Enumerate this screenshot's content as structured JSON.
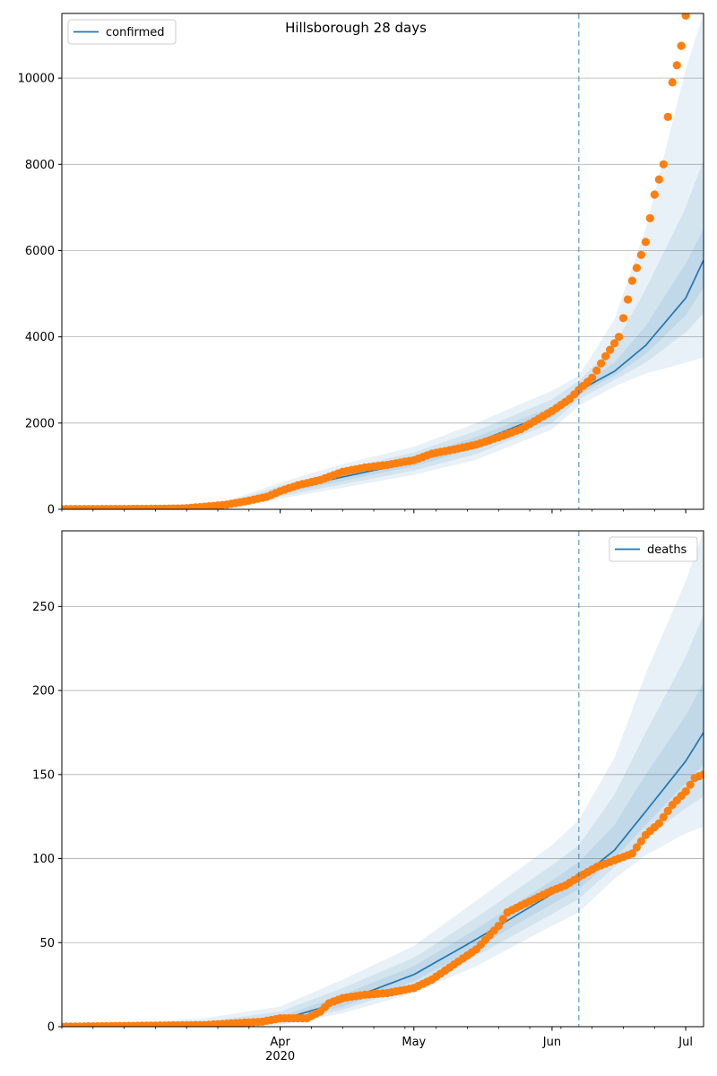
{
  "chart_data": [
    {
      "type": "line",
      "title": "Hillsborough 28 days",
      "xlabel": "",
      "ylabel": "",
      "x_axis": "date",
      "xlim": [
        "2020-02-12",
        "2020-07-05"
      ],
      "ylim": [
        0,
        11500
      ],
      "yticks": [
        0,
        2000,
        4000,
        6000,
        8000,
        10000
      ],
      "xtick_labels": [
        {
          "date": "2020-04-01",
          "label": "Apr",
          "sublabel": "2020"
        },
        {
          "date": "2020-05-01",
          "label": "May",
          "sublabel": ""
        },
        {
          "date": "2020-06-01",
          "label": "Jun",
          "sublabel": ""
        },
        {
          "date": "2020-07-01",
          "label": "Jul",
          "sublabel": ""
        }
      ],
      "grid": "horizontal",
      "legend": {
        "placement": "top-left",
        "entries": [
          "confirmed"
        ]
      },
      "vline_date": "2020-06-07",
      "colors": {
        "model": "#1f77b4",
        "observed": "#ff7f0e",
        "vline": "#1f77b4"
      },
      "model_series": {
        "name": "confirmed",
        "x": [
          "2020-02-12",
          "2020-03-01",
          "2020-03-15",
          "2020-03-22",
          "2020-04-01",
          "2020-04-15",
          "2020-05-01",
          "2020-05-15",
          "2020-06-01",
          "2020-06-07",
          "2020-06-15",
          "2020-06-22",
          "2020-07-01",
          "2020-07-05"
        ],
        "median": [
          0,
          5,
          30,
          150,
          420,
          750,
          1100,
          1550,
          2250,
          2750,
          3200,
          3800,
          4900,
          5780
        ],
        "bands": [
          {
            "lo": [
              0,
              0,
              10,
              80,
              250,
              500,
              800,
              1150,
              1850,
              2400,
              2850,
              3150,
              3400,
              3520
            ],
            "hi": [
              0,
              20,
              80,
              260,
              620,
              1050,
              1450,
              2000,
              2750,
              3100,
              4400,
              6500,
              10200,
              11500
            ]
          },
          {
            "lo": [
              0,
              2,
              15,
              100,
              300,
              580,
              900,
              1280,
              2000,
              2550,
              3000,
              3400,
              4100,
              4550
            ],
            "hi": [
              0,
              12,
              55,
              210,
              540,
              930,
              1320,
              1820,
              2550,
              2980,
              3800,
              5100,
              7000,
              8100
            ]
          },
          {
            "lo": [
              0,
              4,
              22,
              125,
              360,
              660,
              1000,
              1420,
              2130,
              2660,
              3100,
              3600,
              4500,
              5150
            ],
            "hi": [
              0,
              8,
              40,
              180,
              480,
              840,
              1210,
              1680,
              2380,
              2850,
              3400,
              4250,
              5700,
              6500
            ]
          }
        ]
      },
      "observed_series": {
        "name": "",
        "x": [
          "2020-02-12",
          "2020-03-01",
          "2020-03-10",
          "2020-03-15",
          "2020-03-20",
          "2020-03-25",
          "2020-03-29",
          "2020-04-01",
          "2020-04-05",
          "2020-04-10",
          "2020-04-15",
          "2020-04-20",
          "2020-04-25",
          "2020-05-01",
          "2020-05-05",
          "2020-05-10",
          "2020-05-15",
          "2020-05-20",
          "2020-05-25",
          "2020-06-01",
          "2020-06-05",
          "2020-06-07",
          "2020-06-10",
          "2020-06-13",
          "2020-06-16",
          "2020-06-19",
          "2020-06-22",
          "2020-06-24",
          "2020-06-26",
          "2020-06-27",
          "2020-06-28",
          "2020-06-29",
          "2020-06-30",
          "2020-07-01"
        ],
        "values": [
          5,
          10,
          20,
          60,
          110,
          200,
          290,
          420,
          560,
          680,
          870,
          970,
          1030,
          1140,
          1290,
          1390,
          1500,
          1670,
          1860,
          2280,
          2560,
          2770,
          3050,
          3550,
          4000,
          5300,
          6200,
          7300,
          8000,
          9100,
          9900,
          10300,
          10750,
          11450
        ]
      }
    },
    {
      "type": "line",
      "title": "",
      "xlabel": "",
      "ylabel": "",
      "x_axis": "date",
      "xlim": [
        "2020-02-12",
        "2020-07-05"
      ],
      "ylim": [
        0,
        295
      ],
      "yticks": [
        0,
        50,
        100,
        150,
        200,
        250
      ],
      "xtick_labels": [
        {
          "date": "2020-04-01",
          "label": "Apr",
          "sublabel": "2020"
        },
        {
          "date": "2020-05-01",
          "label": "May",
          "sublabel": ""
        },
        {
          "date": "2020-06-01",
          "label": "Jun",
          "sublabel": ""
        },
        {
          "date": "2020-07-01",
          "label": "Jul",
          "sublabel": ""
        }
      ],
      "grid": "horizontal",
      "legend": {
        "placement": "top-right",
        "entries": [
          "deaths"
        ]
      },
      "vline_date": "2020-06-07",
      "colors": {
        "model": "#1f77b4",
        "observed": "#ff7f0e",
        "vline": "#1f77b4"
      },
      "model_series": {
        "name": "deaths",
        "x": [
          "2020-02-12",
          "2020-03-15",
          "2020-04-01",
          "2020-04-15",
          "2020-05-01",
          "2020-05-15",
          "2020-06-01",
          "2020-06-07",
          "2020-06-15",
          "2020-06-22",
          "2020-07-01",
          "2020-07-05"
        ],
        "median": [
          0,
          1,
          4,
          15,
          31,
          52,
          79,
          88,
          105,
          128,
          158,
          175
        ],
        "bands": [
          {
            "lo": [
              0,
              0,
              1,
              8,
              20,
              36,
              60,
              68,
              88,
              102,
              115,
              119
            ],
            "hi": [
              0,
              5,
              12,
              28,
              48,
              75,
              108,
              123,
              160,
              210,
              265,
              295
            ]
          },
          {
            "lo": [
              0,
              0,
              2,
              10,
              24,
              42,
              67,
              76,
              95,
              112,
              130,
              137
            ],
            "hi": [
              0,
              3,
              9,
              23,
              41,
              65,
              96,
              108,
              138,
              175,
              220,
              245
            ]
          },
          {
            "lo": [
              0,
              1,
              3,
              12,
              27,
              47,
              73,
              82,
              100,
              120,
              145,
              156
            ],
            "hi": [
              0,
              2,
              6,
              19,
              36,
              58,
              87,
              98,
              120,
              150,
              185,
              205
            ]
          }
        ]
      },
      "observed_series": {
        "name": "",
        "x": [
          "2020-02-12",
          "2020-03-15",
          "2020-03-28",
          "2020-04-01",
          "2020-04-07",
          "2020-04-10",
          "2020-04-12",
          "2020-04-15",
          "2020-04-20",
          "2020-04-25",
          "2020-05-01",
          "2020-05-05",
          "2020-05-10",
          "2020-05-15",
          "2020-05-20",
          "2020-05-22",
          "2020-05-25",
          "2020-06-01",
          "2020-06-04",
          "2020-06-07",
          "2020-06-11",
          "2020-06-15",
          "2020-06-19",
          "2020-06-22",
          "2020-06-25",
          "2020-06-28",
          "2020-07-01",
          "2020-07-03",
          "2020-07-05"
        ],
        "values": [
          0,
          1,
          3,
          5,
          5,
          9,
          14,
          17,
          19,
          20,
          23,
          28,
          37,
          46,
          60,
          68,
          72,
          81,
          84,
          89,
          95,
          99,
          103,
          114,
          121,
          132,
          140,
          148,
          150
        ]
      }
    }
  ]
}
